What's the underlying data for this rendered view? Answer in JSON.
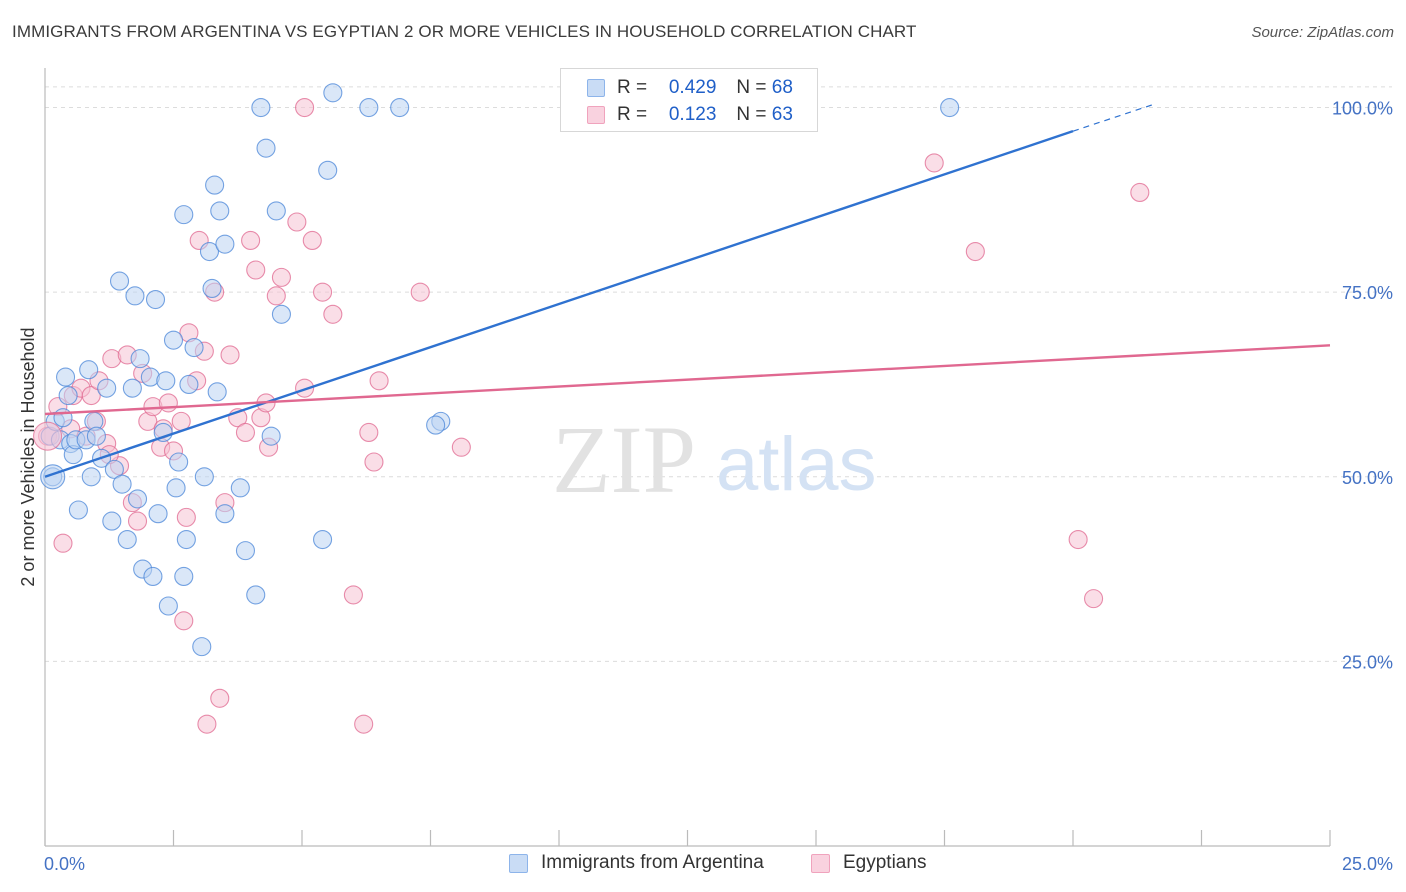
{
  "title": "IMMIGRANTS FROM ARGENTINA VS EGYPTIAN 2 OR MORE VEHICLES IN HOUSEHOLD CORRELATION CHART",
  "source": "Source: ZipAtlas.com",
  "watermark": {
    "zip": "ZIP",
    "atlas": "atlas"
  },
  "legend": {
    "r_label": "R =",
    "n_label": "N =",
    "rows": [
      {
        "r": "0.429",
        "n": "68",
        "color": "#8db4ea",
        "fill": "#c9dcf5"
      },
      {
        "r": "0.123",
        "n": "63",
        "color": "#f0a3bd",
        "fill": "#f9d2df"
      }
    ]
  },
  "bottom_legend": [
    "Immigrants from Argentina",
    "Egyptians"
  ],
  "chart_data": {
    "type": "scatter",
    "title": "IMMIGRANTS FROM ARGENTINA VS EGYPTIAN 2 OR MORE VEHICLES IN HOUSEHOLD CORRELATION CHART",
    "xlabel": "",
    "ylabel": "2 or more Vehicles in Household",
    "xlim": [
      0,
      25
    ],
    "ylim": [
      0,
      104
    ],
    "x_tick_labels": [
      "0.0%",
      "25.0%"
    ],
    "y_ticks": [
      25,
      50,
      75,
      100
    ],
    "y_tick_labels": [
      "25.0%",
      "50.0%",
      "75.0%",
      "100.0%"
    ],
    "grid": true,
    "series": [
      {
        "name": "Immigrants from Argentina",
        "color": "#4a86d8",
        "fill": "#bcd3f2",
        "trend": {
          "x": [
            0,
            20
          ],
          "y": [
            50.0,
            96.8
          ],
          "dash_to": [
            21.6,
            100.5
          ]
        },
        "points": [
          [
            0.1,
            55.5
          ],
          [
            0.2,
            57.5
          ],
          [
            0.3,
            55.0
          ],
          [
            0.35,
            58.0
          ],
          [
            0.4,
            63.5
          ],
          [
            0.45,
            61.0
          ],
          [
            0.5,
            54.5
          ],
          [
            0.55,
            53.0
          ],
          [
            0.6,
            55.0
          ],
          [
            0.65,
            45.5
          ],
          [
            0.8,
            55.0
          ],
          [
            0.85,
            64.5
          ],
          [
            0.9,
            50.0
          ],
          [
            0.95,
            57.5
          ],
          [
            1.0,
            55.5
          ],
          [
            1.1,
            52.5
          ],
          [
            1.2,
            62.0
          ],
          [
            1.3,
            44.0
          ],
          [
            1.35,
            51.0
          ],
          [
            1.45,
            76.5
          ],
          [
            1.5,
            49.0
          ],
          [
            1.6,
            41.5
          ],
          [
            1.7,
            62.0
          ],
          [
            1.75,
            74.5
          ],
          [
            1.8,
            47.0
          ],
          [
            1.85,
            66.0
          ],
          [
            1.9,
            37.5
          ],
          [
            2.05,
            63.5
          ],
          [
            2.1,
            36.5
          ],
          [
            2.15,
            74.0
          ],
          [
            2.2,
            45.0
          ],
          [
            2.3,
            56.0
          ],
          [
            2.35,
            63.0
          ],
          [
            2.4,
            32.5
          ],
          [
            2.5,
            68.5
          ],
          [
            2.55,
            48.5
          ],
          [
            2.6,
            52.0
          ],
          [
            2.7,
            36.5
          ],
          [
            2.8,
            62.5
          ],
          [
            2.7,
            85.5
          ],
          [
            2.75,
            41.5
          ],
          [
            2.9,
            67.5
          ],
          [
            3.05,
            27.0
          ],
          [
            3.1,
            50.0
          ],
          [
            3.2,
            80.5
          ],
          [
            3.25,
            75.5
          ],
          [
            3.35,
            61.5
          ],
          [
            3.5,
            81.5
          ],
          [
            3.5,
            45.0
          ],
          [
            3.3,
            89.5
          ],
          [
            3.4,
            86.0
          ],
          [
            3.8,
            48.5
          ],
          [
            3.9,
            40.0
          ],
          [
            4.1,
            34.0
          ],
          [
            4.3,
            94.5
          ],
          [
            4.4,
            55.5
          ],
          [
            4.5,
            86.0
          ],
          [
            4.6,
            72.0
          ],
          [
            4.2,
            110.0
          ],
          [
            5.4,
            41.5
          ],
          [
            5.5,
            91.5
          ],
          [
            5.6,
            102.0
          ],
          [
            6.3,
            100.0
          ],
          [
            7.7,
            57.5
          ],
          [
            7.6,
            57.0
          ],
          [
            17.6,
            100.0
          ],
          [
            0.15,
            50.0
          ],
          [
            6.9,
            100.0
          ]
        ]
      },
      {
        "name": "Egyptians",
        "color": "#e06890",
        "fill": "#f6c2d3",
        "trend": {
          "x": [
            0,
            25
          ],
          "y": [
            58.5,
            67.8
          ]
        },
        "points": [
          [
            0.05,
            55.5
          ],
          [
            0.25,
            59.5
          ],
          [
            0.35,
            41.0
          ],
          [
            0.5,
            56.5
          ],
          [
            0.55,
            61.0
          ],
          [
            0.7,
            62.0
          ],
          [
            0.8,
            55.5
          ],
          [
            0.9,
            61.0
          ],
          [
            1.0,
            57.5
          ],
          [
            1.05,
            63.0
          ],
          [
            1.2,
            54.5
          ],
          [
            1.3,
            66.0
          ],
          [
            1.45,
            51.5
          ],
          [
            1.6,
            66.5
          ],
          [
            1.7,
            46.5
          ],
          [
            1.9,
            64.0
          ],
          [
            2.0,
            57.5
          ],
          [
            2.1,
            59.5
          ],
          [
            2.25,
            54.0
          ],
          [
            2.3,
            56.5
          ],
          [
            2.4,
            60.0
          ],
          [
            2.5,
            53.5
          ],
          [
            2.65,
            57.5
          ],
          [
            2.75,
            44.5
          ],
          [
            2.8,
            69.5
          ],
          [
            2.95,
            63.0
          ],
          [
            3.0,
            82.0
          ],
          [
            3.1,
            67.0
          ],
          [
            3.3,
            75.0
          ],
          [
            3.4,
            20.0
          ],
          [
            3.5,
            46.5
          ],
          [
            3.6,
            66.5
          ],
          [
            3.75,
            58.0
          ],
          [
            3.9,
            56.0
          ],
          [
            4.0,
            82.0
          ],
          [
            4.1,
            78.0
          ],
          [
            4.2,
            58.0
          ],
          [
            4.3,
            60.0
          ],
          [
            4.5,
            74.5
          ],
          [
            4.6,
            77.0
          ],
          [
            4.9,
            84.5
          ],
          [
            5.05,
            62.0
          ],
          [
            5.2,
            82.0
          ],
          [
            5.4,
            75.0
          ],
          [
            5.6,
            72.0
          ],
          [
            3.15,
            16.5
          ],
          [
            4.35,
            54.0
          ],
          [
            6.0,
            34.0
          ],
          [
            6.2,
            16.5
          ],
          [
            6.3,
            56.0
          ],
          [
            6.4,
            52.0
          ],
          [
            6.5,
            63.0
          ],
          [
            7.3,
            75.0
          ],
          [
            8.1,
            54.0
          ],
          [
            5.05,
            100.0
          ],
          [
            17.3,
            92.5
          ],
          [
            18.1,
            80.5
          ],
          [
            20.1,
            41.5
          ],
          [
            20.4,
            33.5
          ],
          [
            21.3,
            88.5
          ],
          [
            1.8,
            44.0
          ],
          [
            2.7,
            30.5
          ],
          [
            1.25,
            53.0
          ]
        ]
      }
    ]
  }
}
